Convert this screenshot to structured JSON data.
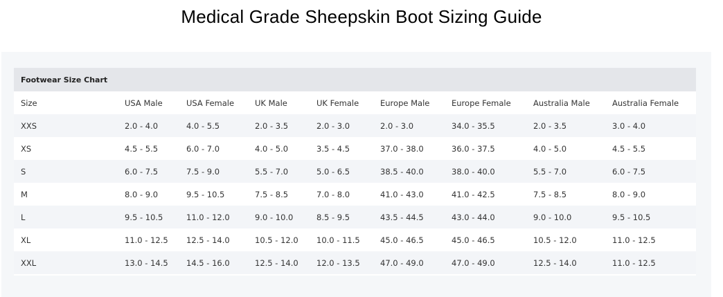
{
  "page": {
    "title": "Medical Grade Sheepskin Boot Sizing Guide"
  },
  "card": {
    "header": "Footwear Size Chart"
  },
  "table": {
    "columns": [
      "Size",
      "USA Male",
      "USA Female",
      "UK Male",
      "UK Female",
      "Europe Male",
      "Europe Female",
      "Australia Male",
      "Australia Female"
    ],
    "rows": [
      [
        "XXS",
        "2.0 - 4.0",
        "4.0 - 5.5",
        "2.0 - 3.5",
        "2.0 - 3.0",
        "2.0 - 3.0",
        "34.0 - 35.5",
        "2.0 - 3.5",
        "3.0 - 4.0"
      ],
      [
        "XS",
        "4.5 - 5.5",
        "6.0 - 7.0",
        "4.0 - 5.0",
        "3.5 - 4.5",
        "37.0 - 38.0",
        "36.0 - 37.5",
        "4.0 - 5.0",
        "4.5 - 5.5"
      ],
      [
        "S",
        "6.0 - 7.5",
        "7.5 - 9.0",
        "5.5 - 7.0",
        "5.0 - 6.5",
        "38.5 - 40.0",
        "38.0 - 40.0",
        "5.5 - 7.0",
        "6.0 - 7.5"
      ],
      [
        "M",
        "8.0 - 9.0",
        "9.5 - 10.5",
        "7.5 - 8.5",
        "7.0 - 8.0",
        "41.0 - 43.0",
        "41.0 - 42.5",
        "7.5 - 8.5",
        "8.0 - 9.0"
      ],
      [
        "L",
        "9.5 - 10.5",
        "11.0 - 12.0",
        "9.0 - 10.0",
        "8.5 - 9.5",
        "43.5 - 44.5",
        "43.0 - 44.0",
        "9.0 - 10.0",
        "9.5 - 10.5"
      ],
      [
        "XL",
        "11.0 - 12.5",
        "12.5 - 14.0",
        "10.5 - 12.0",
        "10.0 - 11.5",
        "45.0 - 46.5",
        "45.0 - 46.5",
        "10.5 - 12.0",
        "11.0 - 12.5"
      ],
      [
        "XXL",
        "13.0 - 14.5",
        "14.5 - 16.0",
        "12.5 - 14.0",
        "12.0 - 13.5",
        "47.0 - 49.0",
        "47.0 - 49.0",
        "12.5 - 14.0",
        "11.0 - 12.5"
      ]
    ]
  }
}
